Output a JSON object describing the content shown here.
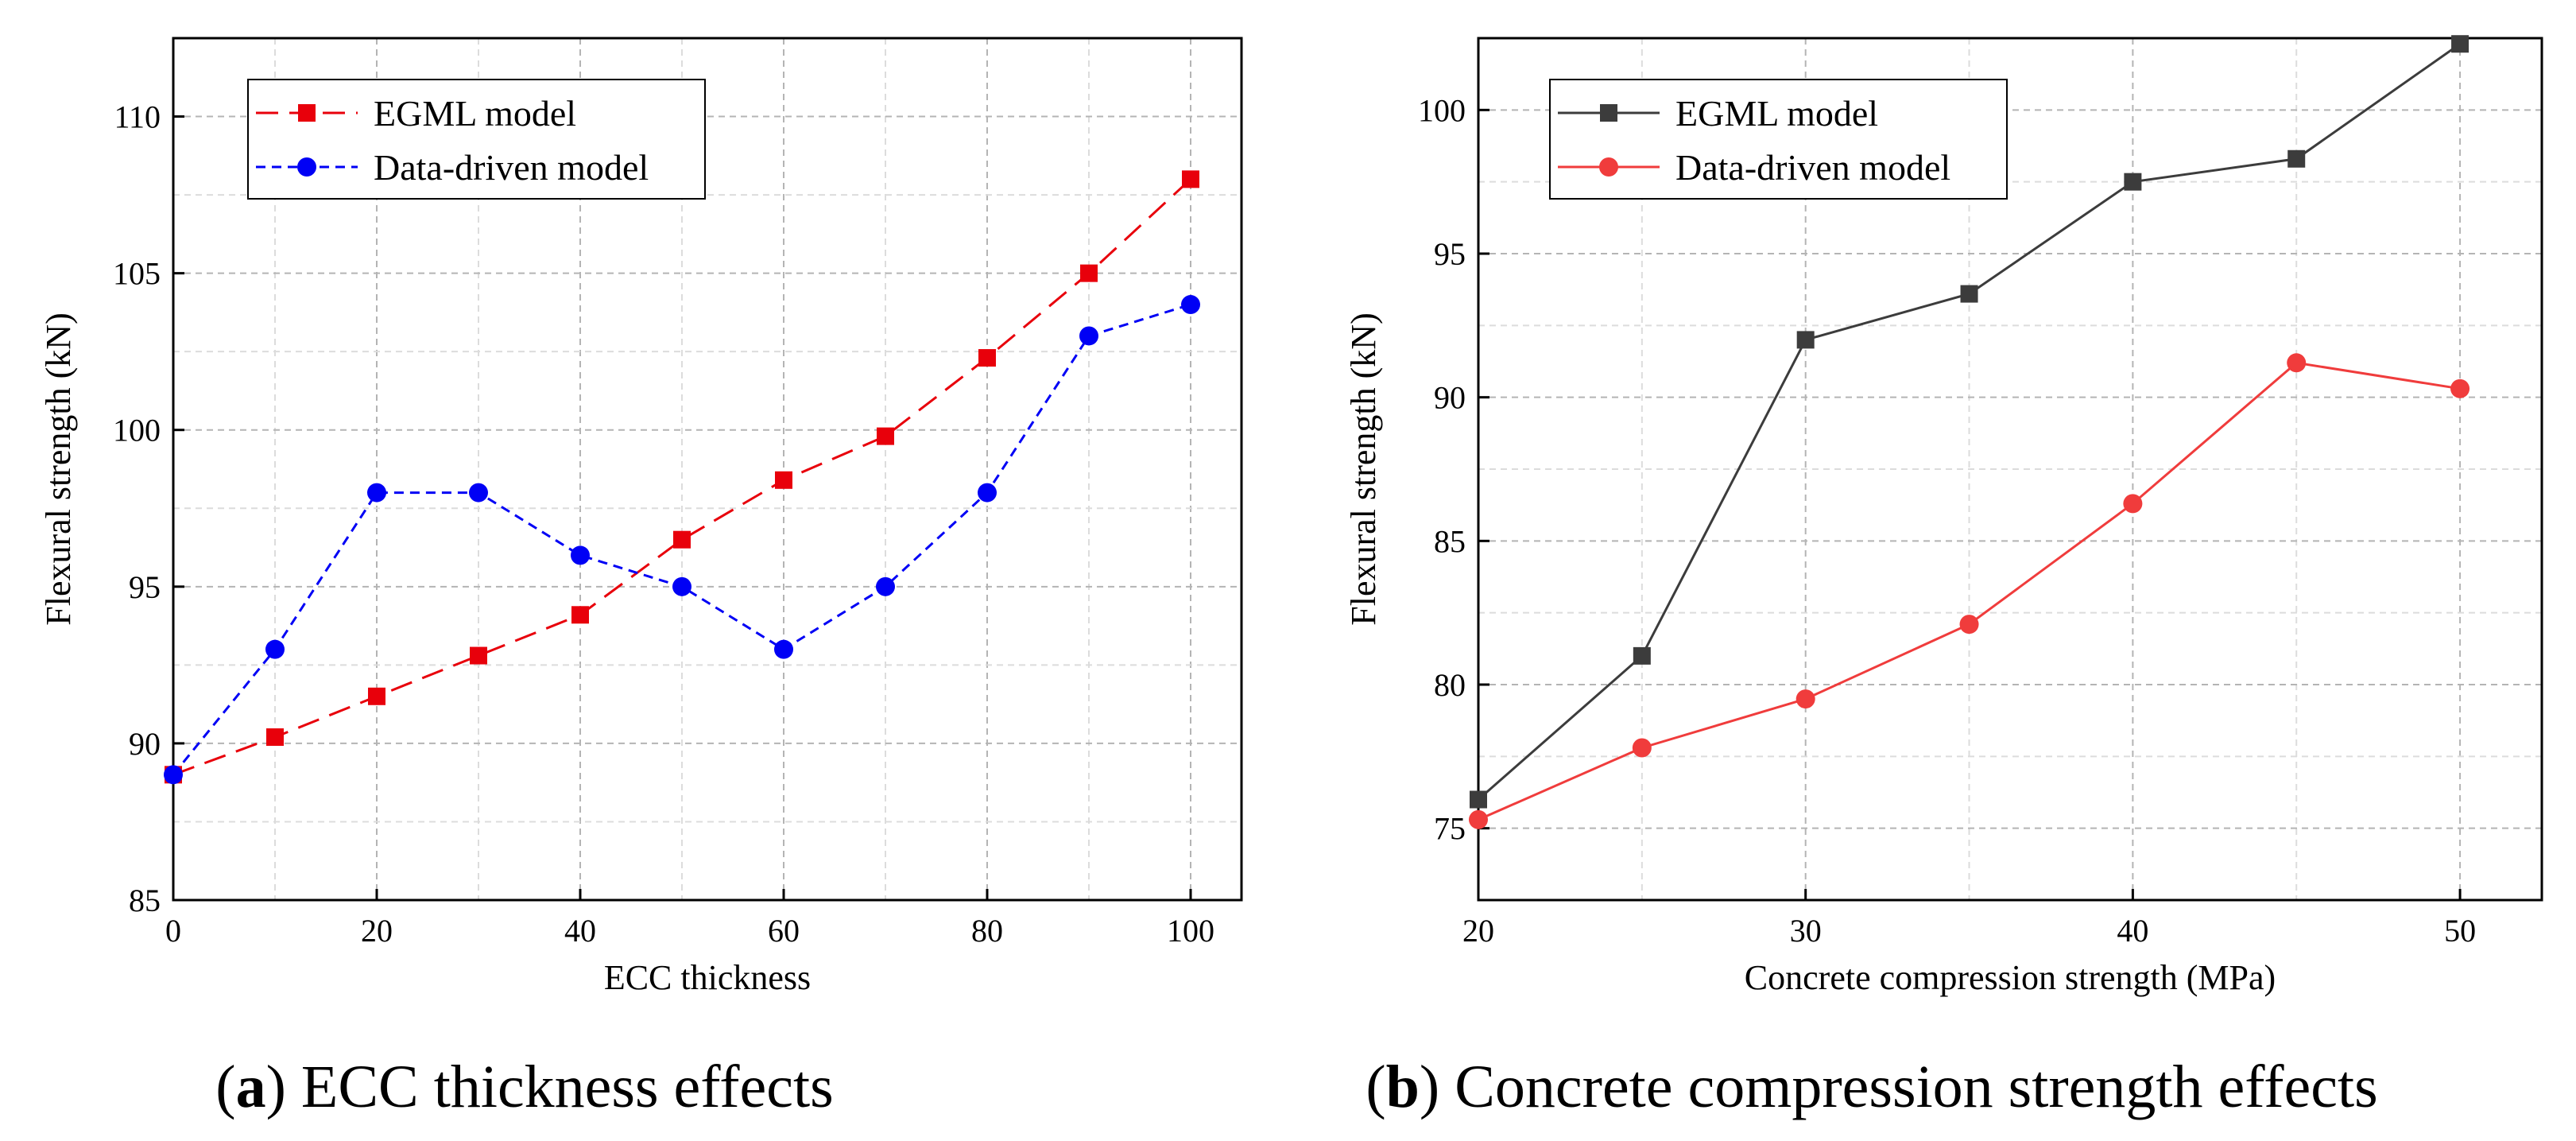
{
  "chart_data": [
    {
      "type": "line",
      "caption": {
        "prefix": "(",
        "letter": "a",
        "text": ") ECC thickness effects"
      },
      "xlabel": "ECC thickness",
      "ylabel": "Flexural strength (kN)",
      "xlim": [
        0,
        105
      ],
      "ylim": [
        85,
        112.5
      ],
      "xticks": [
        0,
        20,
        40,
        60,
        80,
        100
      ],
      "yticks": [
        85,
        90,
        95,
        100,
        105,
        110
      ],
      "grid": true,
      "legend_position": "top-left",
      "series": [
        {
          "name": "EGML model",
          "color": "#e8000b",
          "marker": "square",
          "line_style": "dashed",
          "x": [
            0,
            10,
            20,
            30,
            40,
            50,
            60,
            70,
            80,
            90,
            100
          ],
          "y": [
            89.0,
            90.2,
            91.5,
            92.8,
            94.1,
            96.5,
            98.4,
            99.8,
            102.3,
            105.0,
            108.0
          ]
        },
        {
          "name": "Data-driven model",
          "color": "#0000f5",
          "marker": "circle",
          "line_style": "dotted",
          "x": [
            0,
            10,
            20,
            30,
            40,
            50,
            60,
            70,
            80,
            90,
            100
          ],
          "y": [
            89.0,
            93.0,
            98.0,
            98.0,
            96.0,
            95.0,
            93.0,
            95.0,
            98.0,
            103.0,
            104.0
          ]
        }
      ]
    },
    {
      "type": "line",
      "caption": {
        "prefix": "(",
        "letter": "b",
        "text": ") Concrete compression strength effects"
      },
      "xlabel": "Concrete compression strength (MPa)",
      "ylabel": "Flexural strength (kN)",
      "xlim": [
        20,
        52.5
      ],
      "ylim": [
        72.5,
        102.5
      ],
      "xticks": [
        20,
        30,
        40,
        50
      ],
      "yticks": [
        75,
        80,
        85,
        90,
        95,
        100
      ],
      "grid": true,
      "legend_position": "top-left",
      "series": [
        {
          "name": "EGML model",
          "color": "#3c3c3c",
          "marker": "square",
          "line_style": "solid",
          "x": [
            20,
            25,
            30,
            35,
            40,
            45,
            50
          ],
          "y": [
            76.0,
            81.0,
            92.0,
            93.6,
            97.5,
            98.3,
            102.3
          ]
        },
        {
          "name": "Data-driven model",
          "color": "#f03c3c",
          "marker": "circle",
          "line_style": "solid",
          "x": [
            20,
            25,
            30,
            35,
            40,
            45,
            50
          ],
          "y": [
            75.3,
            77.8,
            79.5,
            82.1,
            86.3,
            91.2,
            90.3
          ]
        }
      ]
    }
  ]
}
